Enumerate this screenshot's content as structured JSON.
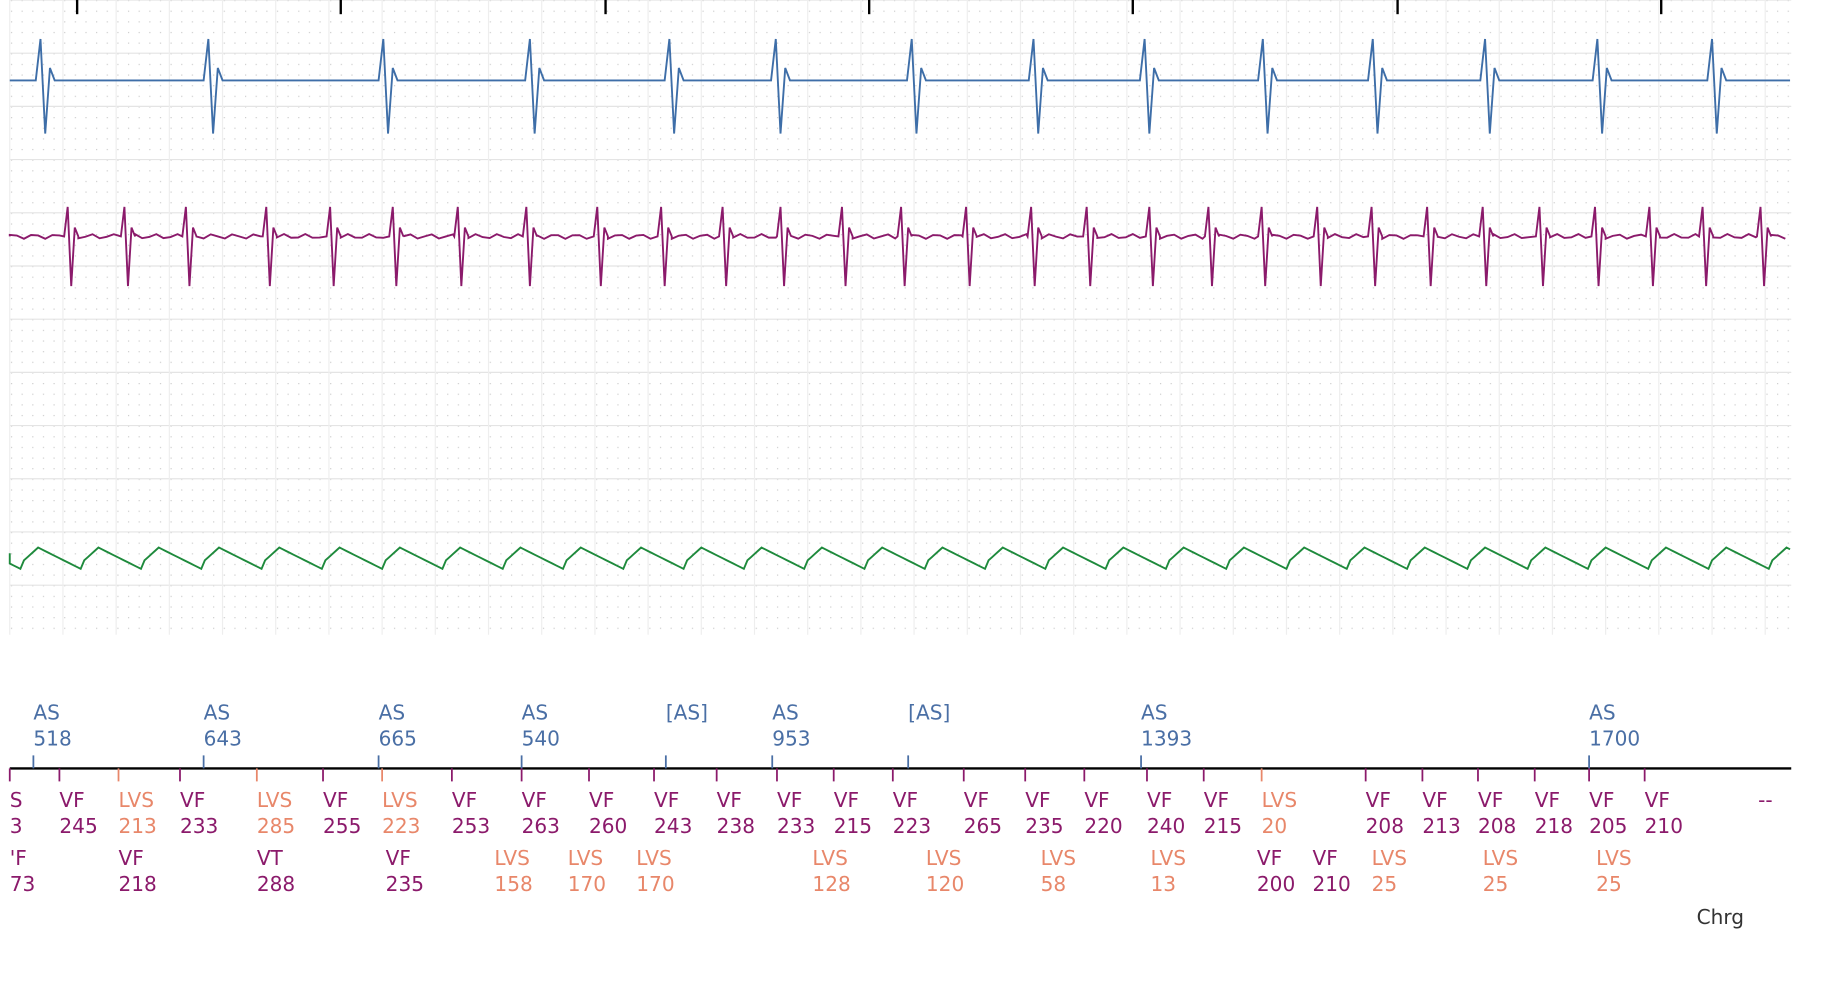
{
  "atrial_markers": [
    {
      "label": "AS",
      "value": 518
    },
    {
      "label": "AS",
      "value": 643
    },
    {
      "label": "AS",
      "value": 665
    },
    {
      "label": "AS",
      "value": 540
    },
    {
      "label": "[AS]"
    },
    {
      "label": "AS",
      "value": 953
    },
    {
      "label": "[AS]"
    },
    {
      "label": "AS",
      "value": 1393
    },
    {
      "label": "AS",
      "value": 1700
    }
  ],
  "ventricular_row1": [
    {
      "label": "S",
      "value": 3
    },
    {
      "label": "VF",
      "value": 245
    },
    {
      "label": "LVS",
      "value": 213
    },
    {
      "label": "VF",
      "value": 233
    },
    {
      "label": "LVS",
      "value": 285
    },
    {
      "label": "VF",
      "value": 255
    },
    {
      "label": "LVS",
      "value": 223
    },
    {
      "label": "VF",
      "value": 253
    },
    {
      "label": "VF",
      "value": 263
    },
    {
      "label": "VF",
      "value": 260
    },
    {
      "label": "VF",
      "value": 243
    },
    {
      "label": "VF",
      "value": 238
    },
    {
      "label": "VF",
      "value": 233
    },
    {
      "label": "VF",
      "value": 215
    },
    {
      "label": "VF",
      "value": 223
    },
    {
      "label": "VF",
      "value": 265
    },
    {
      "label": "VF",
      "value": 235
    },
    {
      "label": "VF",
      "value": 220
    },
    {
      "label": "VF",
      "value": 240
    },
    {
      "label": "VF",
      "value": 215
    },
    {
      "label": "LVS",
      "value": 20
    },
    {
      "label": "VF",
      "value": 208
    },
    {
      "label": "VF",
      "value": 213
    },
    {
      "label": "VF",
      "value": 208
    },
    {
      "label": "VF",
      "value": 218
    },
    {
      "label": "VF",
      "value": 205
    },
    {
      "label": "VF",
      "value": 210
    },
    {
      "label": "--"
    }
  ],
  "ventricular_row2": [
    {
      "label": "'F",
      "value": 73
    },
    {
      "label": "VF",
      "value": 218
    },
    {
      "label": "VT",
      "value": 288
    },
    {
      "label": "VF",
      "value": 235
    },
    {
      "label": "LVS",
      "value": 158
    },
    {
      "label": "LVS",
      "value": 170
    },
    {
      "label": "LVS",
      "value": 170
    },
    {
      "label": "LVS",
      "value": 128
    },
    {
      "label": "LVS",
      "value": 120
    },
    {
      "label": "LVS",
      "value": 58
    },
    {
      "label": "LVS",
      "value": 13
    },
    {
      "label": "VF",
      "value": 200
    },
    {
      "label": "VF",
      "value": 210
    },
    {
      "label": "LVS",
      "value": 25
    },
    {
      "label": "LVS",
      "value": 25
    },
    {
      "label": "LVS",
      "value": 25
    }
  ],
  "status": "Chrg"
}
